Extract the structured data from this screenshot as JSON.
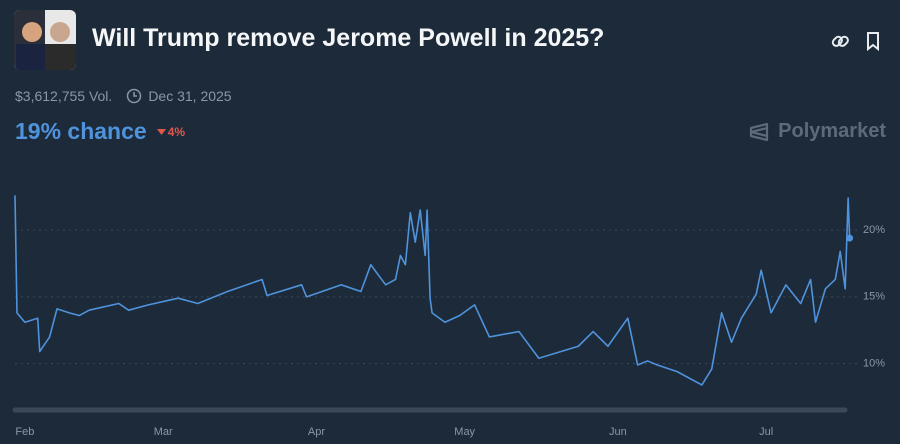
{
  "header": {
    "title": "Will Trump remove Jerome Powell in 2025?",
    "volume": "$3,612,755 Vol.",
    "end_date": "Dec 31, 2025",
    "chance": "19% chance",
    "change": "4%",
    "brand": "Polymarket"
  },
  "chart_data": {
    "type": "line",
    "color": "#4f93dc",
    "grid": true,
    "x": [
      -2,
      -1.6,
      0,
      2.6,
      3,
      5,
      6.5,
      9,
      11,
      13,
      19,
      21,
      25,
      31,
      35,
      41,
      48,
      49,
      56,
      57,
      64,
      68,
      70,
      73,
      75,
      76,
      77,
      78,
      79,
      80,
      81,
      81.4,
      82,
      82.4,
      85,
      88,
      91,
      94,
      100,
      104,
      112,
      115,
      118,
      122,
      124,
      126,
      128,
      132,
      137,
      139,
      141,
      143,
      145,
      148,
      149,
      151,
      154,
      157,
      159,
      160,
      162,
      164,
      165,
      166,
      166.6,
      166.9
    ],
    "values": [
      22.6,
      13.8,
      13.1,
      13.4,
      10.9,
      12,
      14.1,
      13.8,
      13.6,
      14,
      14.5,
      14,
      14.4,
      14.9,
      14.5,
      15.4,
      16.3,
      15.1,
      15.9,
      15,
      15.9,
      15.4,
      17.4,
      15.9,
      16.3,
      18.1,
      17.4,
      21.3,
      19.1,
      21.5,
      18.1,
      21.5,
      14.9,
      13.8,
      13.1,
      13.6,
      14.4,
      12,
      12.4,
      10.4,
      11.3,
      12.4,
      11.3,
      13.4,
      9.9,
      10.2,
      9.9,
      9.4,
      8.4,
      9.6,
      13.8,
      11.6,
      13.4,
      15.2,
      17,
      13.8,
      15.9,
      14.5,
      16.3,
      13.1,
      15.6,
      16.3,
      18.4,
      15.6,
      22.4,
      19.4
    ],
    "xlim": [
      -2,
      169
    ],
    "xticks": [
      {
        "value": 0,
        "label": "Feb"
      },
      {
        "value": 28,
        "label": "Mar"
      },
      {
        "value": 59,
        "label": "Apr"
      },
      {
        "value": 89,
        "label": "May"
      },
      {
        "value": 120,
        "label": "Jun"
      },
      {
        "value": 150,
        "label": "Jul"
      }
    ],
    "ylim": [
      7.5,
      23
    ],
    "yticks": [
      {
        "value": 10,
        "label": "10%"
      },
      {
        "value": 15,
        "label": "15%"
      },
      {
        "value": 20,
        "label": "20%"
      }
    ]
  }
}
